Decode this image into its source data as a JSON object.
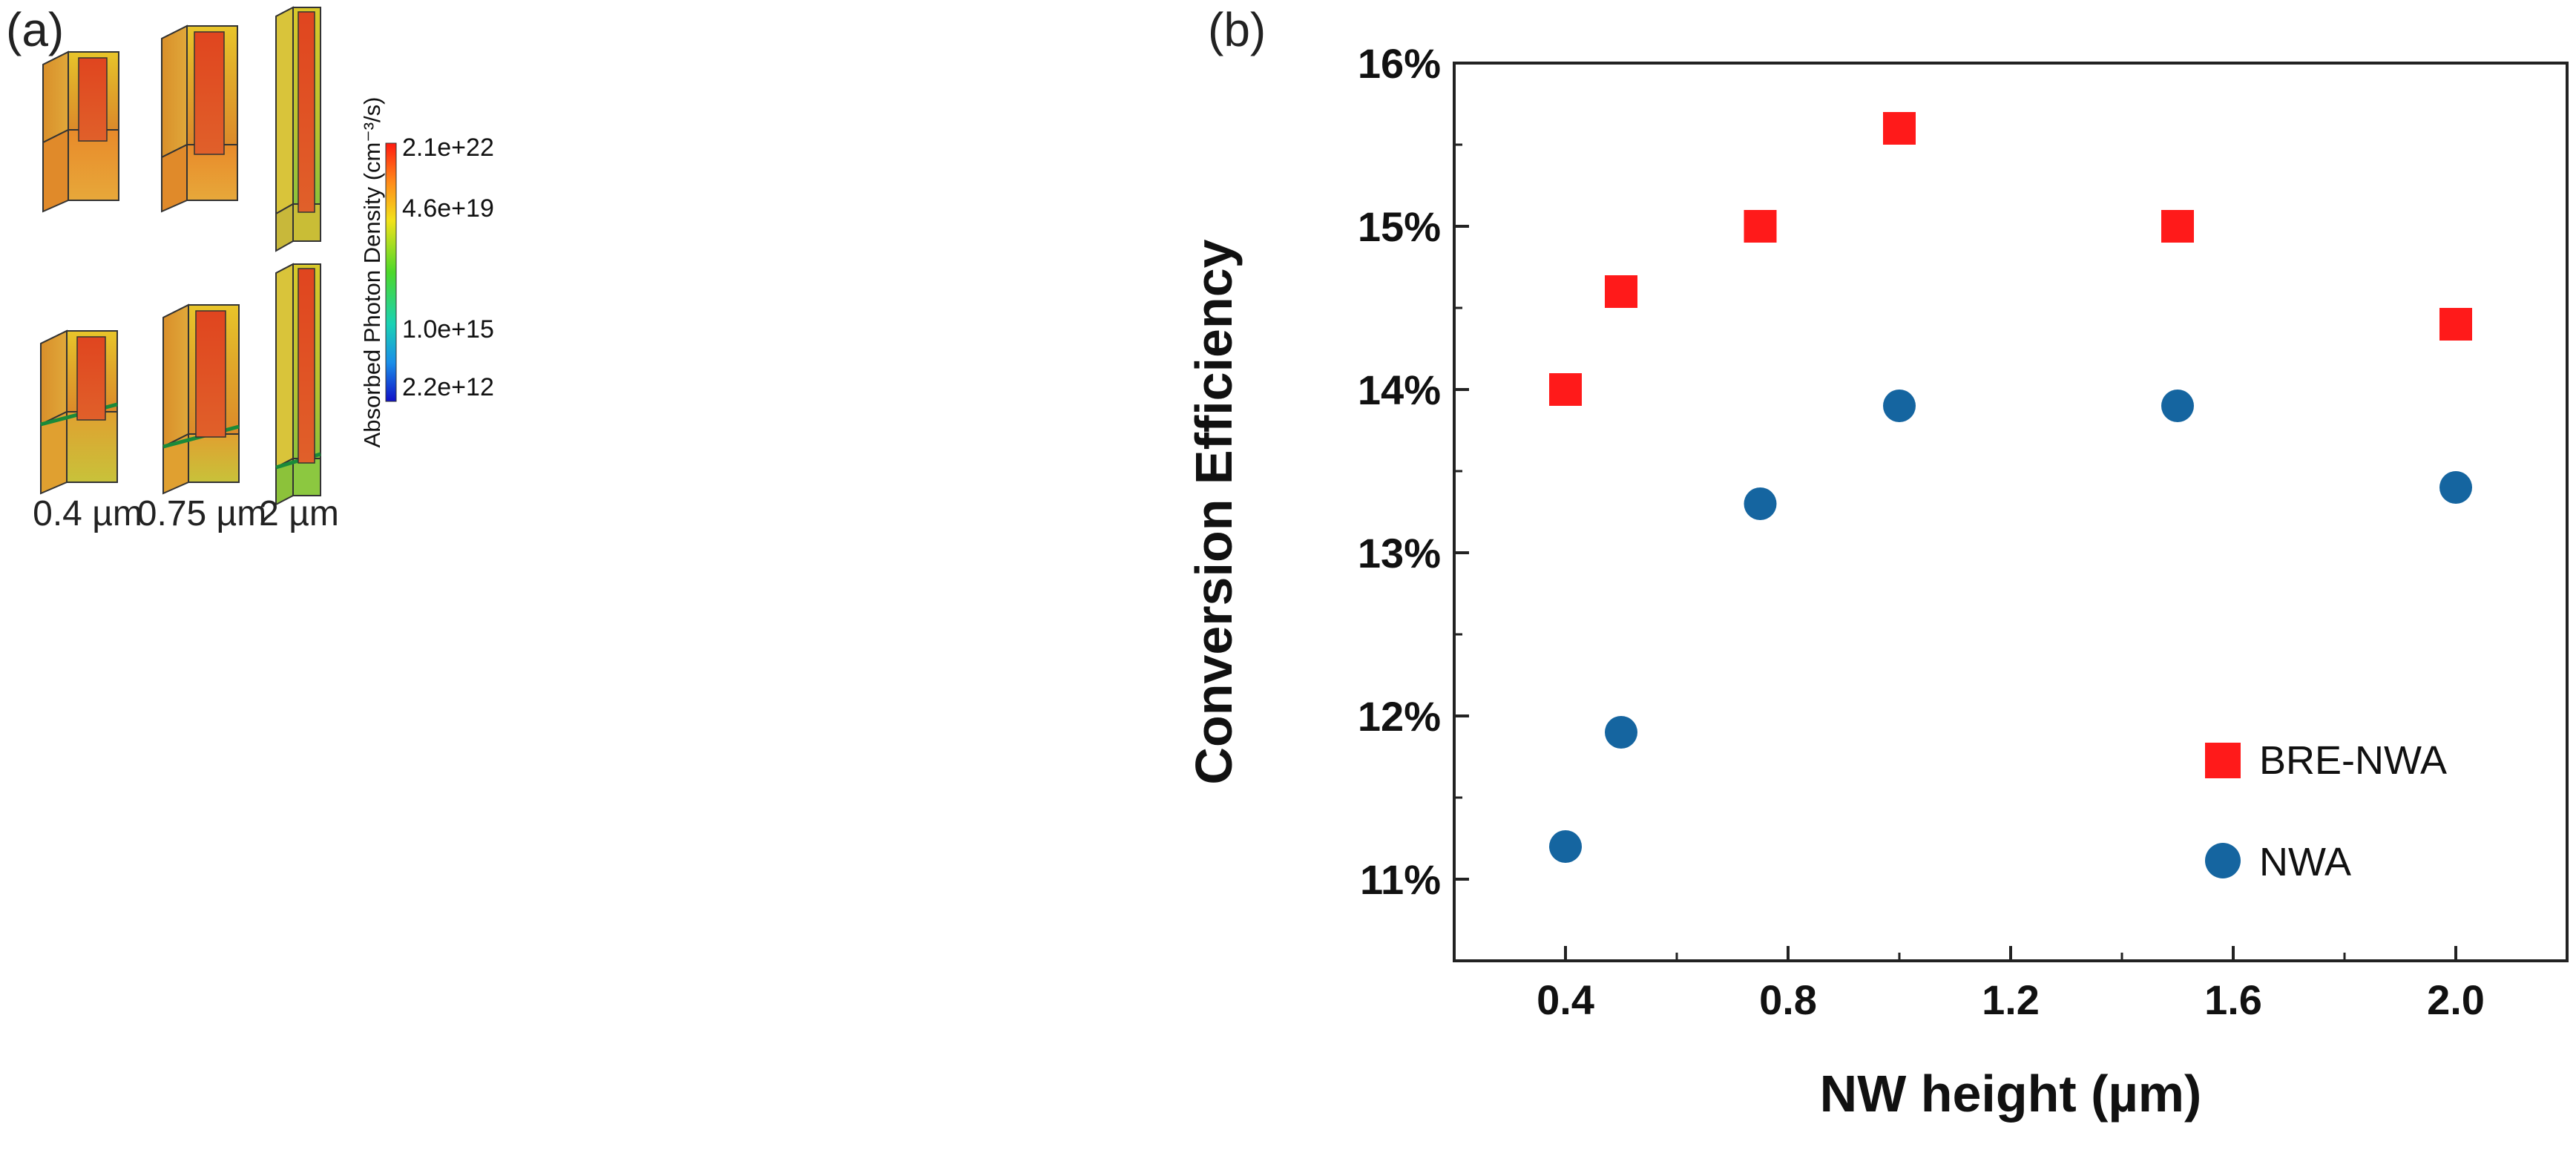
{
  "panel_a": {
    "label": "(a)",
    "captions": [
      "0.4 µm",
      "0.75 µm",
      "2 µm"
    ],
    "colorbar": {
      "title": "Absorbed Photon Density (cm⁻³/s)",
      "ticks": [
        "2.1e+22",
        "4.6e+19",
        "1.0e+15",
        "2.2e+12"
      ]
    }
  },
  "panel_b": {
    "label": "(b)"
  },
  "chart_data": {
    "type": "scatter",
    "title": "",
    "xlabel": "NW height (µm)",
    "ylabel": "Conversion Efficiency",
    "xlim": [
      0.2,
      2.2
    ],
    "ylim": [
      10.5,
      16
    ],
    "xticks": [
      0.4,
      0.8,
      1.2,
      1.6,
      2.0
    ],
    "xtick_labels": [
      "0.4",
      "0.8",
      "1.2",
      "1.6",
      "2.0"
    ],
    "yticks": [
      11,
      12,
      13,
      14,
      15,
      16
    ],
    "ytick_labels": [
      "11%",
      "12%",
      "13%",
      "14%",
      "15%",
      "16%"
    ],
    "legend_position": "lower-right",
    "series": [
      {
        "name": "BRE-NWA",
        "marker": "square",
        "color": "#ff1a1a",
        "x": [
          0.4,
          0.5,
          0.75,
          1.0,
          1.5,
          2.0
        ],
        "y": [
          14.0,
          14.6,
          15.0,
          15.6,
          15.0,
          14.4
        ]
      },
      {
        "name": "NWA",
        "marker": "circle",
        "color": "#1565a0",
        "x": [
          0.4,
          0.5,
          0.75,
          1.0,
          1.5,
          2.0
        ],
        "y": [
          11.2,
          11.9,
          13.3,
          13.9,
          13.9,
          13.4
        ]
      }
    ]
  }
}
